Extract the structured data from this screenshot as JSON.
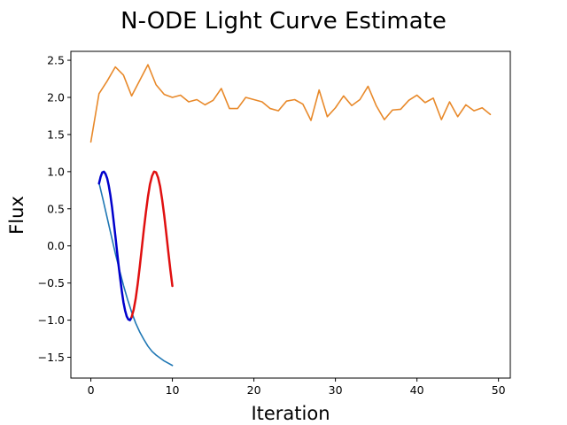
{
  "chart_data": {
    "type": "line",
    "title": "N-ODE Light Curve Estimate",
    "xlabel": "Iteration",
    "ylabel": "Flux",
    "xlim": [
      -2.45,
      51.45
    ],
    "ylim": [
      -1.78,
      2.62
    ],
    "xticks": [
      0,
      10,
      20,
      30,
      40,
      50
    ],
    "yticks": [
      -1.5,
      -1.0,
      -0.5,
      0.0,
      0.5,
      1.0,
      1.5,
      2.0,
      2.5
    ],
    "xtick_labels": [
      "0",
      "10",
      "20",
      "30",
      "40",
      "50"
    ],
    "ytick_labels": [
      "−1.5",
      "−1.0",
      "−0.5",
      "0.0",
      "0.5",
      "1.0",
      "1.5",
      "2.0",
      "2.5"
    ],
    "grid": false,
    "legend": "none",
    "series": [
      {
        "color": "#e8892a",
        "width": 1.6,
        "x": [
          0,
          1,
          2,
          3,
          4,
          5,
          6,
          7,
          8,
          9,
          10,
          11,
          12,
          13,
          14,
          15,
          16,
          17,
          18,
          19,
          20,
          21,
          22,
          23,
          24,
          25,
          26,
          27,
          28,
          29,
          30,
          31,
          32,
          33,
          34,
          35,
          36,
          37,
          38,
          39,
          40,
          41,
          42,
          43,
          44,
          45,
          46,
          47,
          48,
          49
        ],
        "y": [
          1.4,
          2.05,
          2.22,
          2.41,
          2.3,
          2.02,
          2.23,
          2.44,
          2.17,
          2.04,
          2.0,
          2.03,
          1.94,
          1.97,
          1.9,
          1.96,
          2.12,
          1.85,
          1.85,
          2.0,
          1.97,
          1.94,
          1.85,
          1.82,
          1.95,
          1.97,
          1.91,
          1.69,
          2.1,
          1.74,
          1.86,
          2.02,
          1.89,
          1.97,
          2.15,
          1.89,
          1.7,
          1.83,
          1.84,
          1.96,
          2.03,
          1.93,
          1.99,
          1.7,
          1.94,
          1.74,
          1.9,
          1.82,
          1.86,
          1.77
        ]
      },
      {
        "color": "#1f77b4",
        "width": 1.6,
        "x": [
          1.0,
          1.5,
          2.0,
          2.5,
          3.0,
          3.5,
          4.0,
          4.5,
          5.0,
          5.5,
          6.0,
          6.5,
          7.0,
          7.5,
          8.0,
          8.5,
          9.0,
          9.5,
          10.0
        ],
        "y": [
          0.85,
          0.62,
          0.38,
          0.14,
          -0.1,
          -0.32,
          -0.53,
          -0.72,
          -0.89,
          -1.04,
          -1.16,
          -1.26,
          -1.35,
          -1.42,
          -1.47,
          -1.51,
          -1.55,
          -1.58,
          -1.61
        ]
      },
      {
        "color": "#0000cc",
        "width": 2.5,
        "x": [
          1.0,
          1.2,
          1.4,
          1.6,
          1.8,
          2.0,
          2.2,
          2.4,
          2.6,
          2.8,
          3.0,
          3.2,
          3.4,
          3.6,
          3.8,
          4.0,
          4.2,
          4.4,
          4.6,
          4.8,
          5.0
        ],
        "y": [
          0.84,
          0.93,
          0.99,
          1.0,
          0.97,
          0.91,
          0.81,
          0.68,
          0.52,
          0.33,
          0.14,
          -0.06,
          -0.26,
          -0.44,
          -0.61,
          -0.76,
          -0.87,
          -0.95,
          -0.99,
          -1.0,
          -0.96
        ]
      },
      {
        "color": "#e01010",
        "width": 2.5,
        "x": [
          5.0,
          5.25,
          5.5,
          5.75,
          6.0,
          6.25,
          6.5,
          6.75,
          7.0,
          7.25,
          7.5,
          7.75,
          8.0,
          8.25,
          8.5,
          8.75,
          9.0,
          9.25,
          9.5,
          9.75,
          10.0
        ],
        "y": [
          -0.96,
          -0.86,
          -0.71,
          -0.51,
          -0.28,
          -0.03,
          0.22,
          0.45,
          0.66,
          0.83,
          0.94,
          1.0,
          0.99,
          0.92,
          0.8,
          0.62,
          0.41,
          0.17,
          -0.08,
          -0.32,
          -0.54
        ]
      }
    ]
  }
}
